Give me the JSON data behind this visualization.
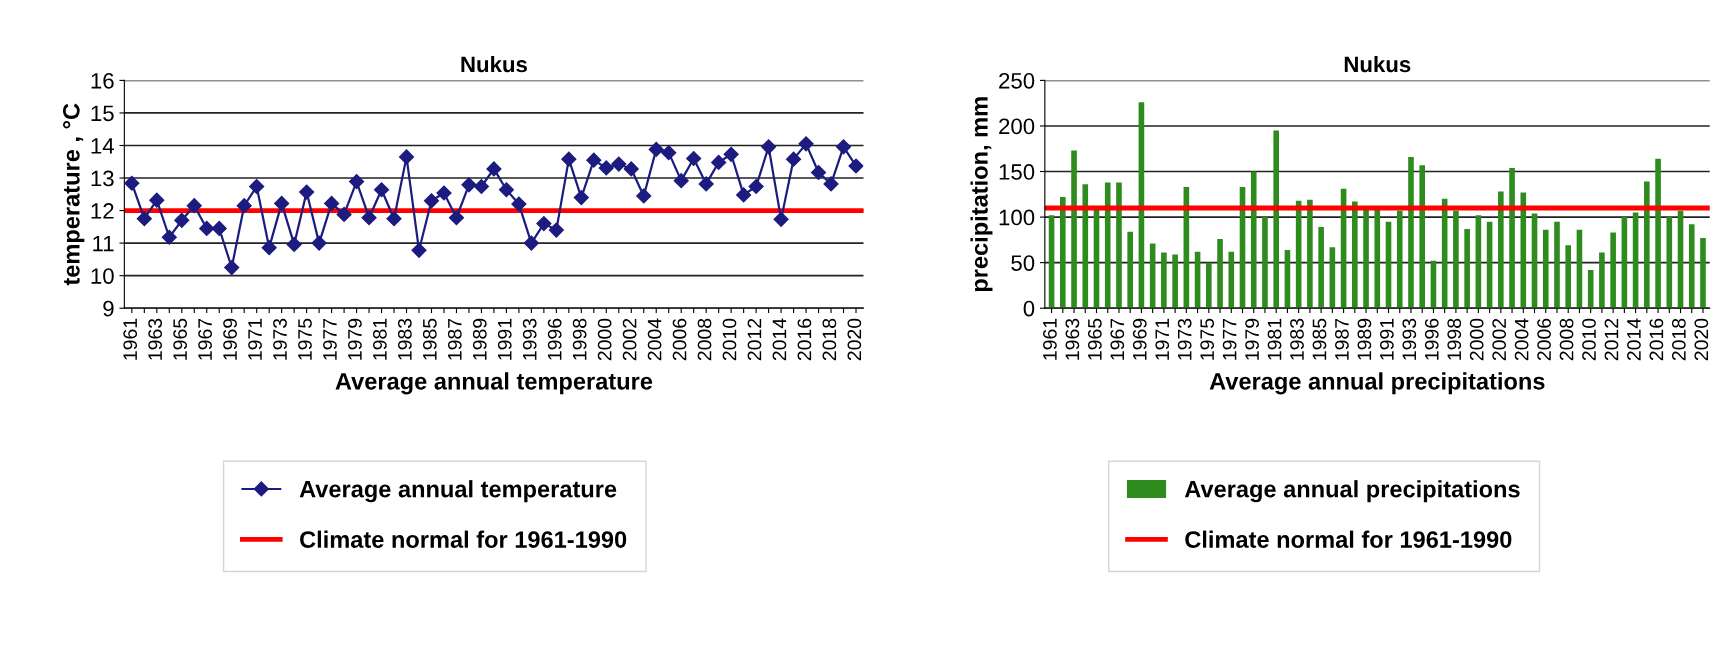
{
  "chart_data": [
    {
      "type": "line",
      "title": "Nukus",
      "xlabel": "Average annual temperature",
      "ylabel": "temperature , °C",
      "categories": [
        "1961",
        null,
        "1963",
        null,
        "1965",
        null,
        "1967",
        null,
        "1969",
        null,
        "1971",
        null,
        "1973",
        null,
        "1975",
        null,
        "1977",
        null,
        "1979",
        null,
        "1981",
        null,
        "1983",
        null,
        "1985",
        null,
        "1987",
        null,
        "1989",
        null,
        "1991",
        null,
        "1993",
        null,
        "1996",
        null,
        "1998",
        null,
        "2000",
        null,
        "2002",
        null,
        "2004",
        null,
        "2006",
        null,
        "2008",
        null,
        "2010",
        null,
        "2012",
        null,
        "2014",
        null,
        "2016",
        null,
        "2018",
        null,
        "2020"
      ],
      "series": [
        {
          "name": "Average annual temperature",
          "color": "#1c1c80",
          "values": [
            12.84,
            11.75,
            12.32,
            11.18,
            11.7,
            12.15,
            11.45,
            11.45,
            10.25,
            12.15,
            12.74,
            10.86,
            12.22,
            10.96,
            12.57,
            11.0,
            12.22,
            11.88,
            12.89,
            11.78,
            12.64,
            11.75,
            13.65,
            10.78,
            12.3,
            12.54,
            11.78,
            12.79,
            12.74,
            13.28,
            12.64,
            12.2,
            11.0,
            11.6,
            11.4,
            13.58,
            12.4,
            13.55,
            13.31,
            13.43,
            13.28,
            12.45,
            13.88,
            13.78,
            12.92,
            13.6,
            12.82,
            13.48,
            13.73,
            12.48,
            12.74,
            13.96,
            11.73,
            13.58,
            14.05,
            13.17,
            12.82,
            13.96,
            13.37
          ]
        }
      ],
      "ref_lines": [
        {
          "axis": "y",
          "value": 12,
          "label": "Climate normal for 1961-1990",
          "color": "#ff0000"
        }
      ],
      "ylim": [
        9,
        16
      ],
      "yticks": [
        9,
        10,
        11,
        12,
        13,
        14,
        15,
        16
      ],
      "grid": "y",
      "legend": "bottom",
      "marker": "diamond",
      "line_style": "solid"
    },
    {
      "type": "bar",
      "title": "Nukus",
      "xlabel": "Average annual precipitations",
      "ylabel": "precipitation, mm",
      "categories": [
        "1961",
        null,
        "1963",
        null,
        "1965",
        null,
        "1967",
        null,
        "1969",
        null,
        "1971",
        null,
        "1973",
        null,
        "1975",
        null,
        "1977",
        null,
        "1979",
        null,
        "1981",
        null,
        "1983",
        null,
        "1985",
        null,
        "1987",
        null,
        "1989",
        null,
        "1991",
        null,
        "1993",
        null,
        "1996",
        null,
        "1998",
        null,
        "2000",
        null,
        "2002",
        null,
        "2004",
        null,
        "2006",
        null,
        "2008",
        null,
        "2010",
        null,
        "2012",
        null,
        "2014",
        null,
        "2016",
        null,
        "2018",
        null,
        "2020"
      ],
      "series": [
        {
          "name": "Average annual precipitations",
          "color": "#2e8b1e",
          "values": [
            102,
            122,
            173,
            136,
            108,
            138,
            138,
            84,
            226,
            71,
            61,
            59,
            133,
            62,
            50,
            76,
            62,
            133,
            150,
            100,
            195,
            64,
            118,
            119,
            89,
            67,
            131,
            117,
            108,
            108,
            95,
            107,
            166,
            157,
            52,
            120,
            107,
            87,
            102,
            95,
            128,
            154,
            127,
            104,
            86,
            95,
            69,
            86,
            42,
            61,
            83,
            100,
            105,
            139,
            164,
            100,
            107,
            92,
            77
          ]
        }
      ],
      "ref_lines": [
        {
          "axis": "y",
          "value": 110,
          "label": "Climate normal for 1961-1990",
          "color": "#ff0000"
        }
      ],
      "ylim": [
        0,
        250
      ],
      "yticks": [
        0,
        50,
        100,
        150,
        200,
        250
      ],
      "grid": "y",
      "legend": "bottom"
    }
  ]
}
